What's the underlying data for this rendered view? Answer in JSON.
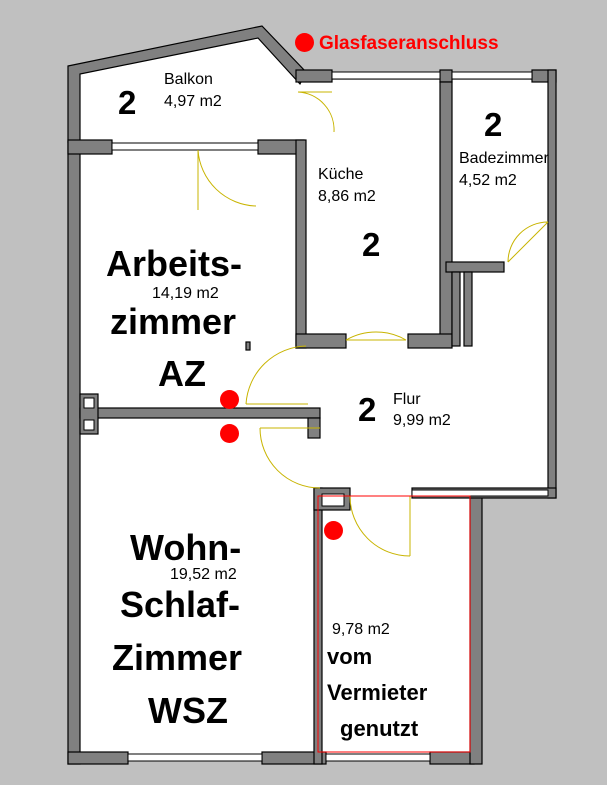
{
  "colors": {
    "background": "#c0c0c0",
    "floor": "#ffffff",
    "wall": "#808080",
    "wall_outline": "#000000",
    "door_arc": "#c8b400",
    "marker": "#ff0000"
  },
  "legend": {
    "glasfaser_label": "Glasfaseranschluss"
  },
  "rooms": {
    "balkon": {
      "number": "2",
      "name": "Balkon",
      "area": "4,97 m2"
    },
    "kueche": {
      "number": "2",
      "name": "Küche",
      "area": "8,86 m2"
    },
    "bad": {
      "number": "2",
      "name": "Badezimmer",
      "area": "4,52 m2"
    },
    "arbeitszimmer": {
      "line1": "Arbeits-",
      "area": "14,19 m2",
      "line2": "zimmer",
      "line3": "AZ"
    },
    "flur": {
      "number": "2",
      "name": "Flur",
      "area": "9,99 m2"
    },
    "wsz": {
      "line1": "Wohn-",
      "area": "19,52 m2",
      "line2": "Schlaf-",
      "line3": "Zimmer",
      "line4": "WSZ"
    },
    "vermieter": {
      "area": "9,78 m2",
      "line1": "vom",
      "line2": "Vermieter",
      "line3": "genutzt"
    }
  }
}
